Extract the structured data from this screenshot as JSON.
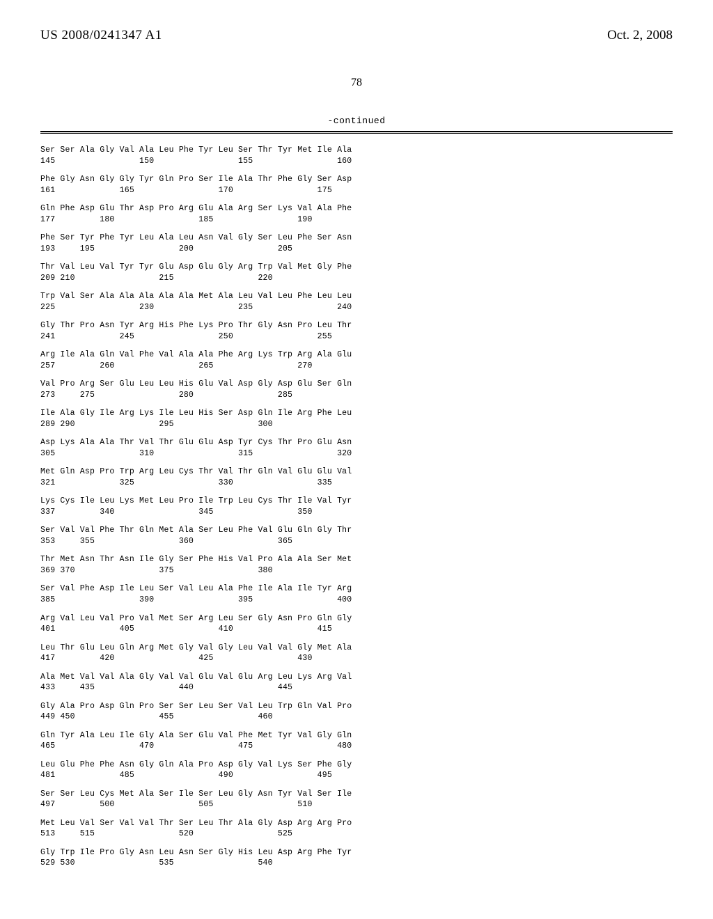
{
  "header": {
    "patent_number": "US 2008/0241347 A1",
    "patent_date": "Oct. 2, 2008"
  },
  "page_number": "78",
  "continued_label": "-continued",
  "sequence": {
    "start": 145,
    "end": 540,
    "line_length": 16,
    "position_markers_every": 5,
    "residues": [
      "Ser",
      "Ser",
      "Ala",
      "Gly",
      "Val",
      "Ala",
      "Leu",
      "Phe",
      "Tyr",
      "Leu",
      "Ser",
      "Thr",
      "Tyr",
      "Met",
      "Ile",
      "Ala",
      "Phe",
      "Gly",
      "Asn",
      "Gly",
      "Gly",
      "Tyr",
      "Gln",
      "Pro",
      "Ser",
      "Ile",
      "Ala",
      "Thr",
      "Phe",
      "Gly",
      "Ser",
      "Asp",
      "Gln",
      "Phe",
      "Asp",
      "Glu",
      "Thr",
      "Asp",
      "Pro",
      "Arg",
      "Glu",
      "Ala",
      "Arg",
      "Ser",
      "Lys",
      "Val",
      "Ala",
      "Phe",
      "Phe",
      "Ser",
      "Tyr",
      "Phe",
      "Tyr",
      "Leu",
      "Ala",
      "Leu",
      "Asn",
      "Val",
      "Gly",
      "Ser",
      "Leu",
      "Phe",
      "Ser",
      "Asn",
      "Thr",
      "Val",
      "Leu",
      "Val",
      "Tyr",
      "Tyr",
      "Glu",
      "Asp",
      "Glu",
      "Gly",
      "Arg",
      "Trp",
      "Val",
      "Met",
      "Gly",
      "Phe",
      "Trp",
      "Val",
      "Ser",
      "Ala",
      "Ala",
      "Ala",
      "Ala",
      "Ala",
      "Met",
      "Ala",
      "Leu",
      "Val",
      "Leu",
      "Phe",
      "Leu",
      "Leu",
      "Gly",
      "Thr",
      "Pro",
      "Asn",
      "Tyr",
      "Arg",
      "His",
      "Phe",
      "Lys",
      "Pro",
      "Thr",
      "Gly",
      "Asn",
      "Pro",
      "Leu",
      "Thr",
      "Arg",
      "Ile",
      "Ala",
      "Gln",
      "Val",
      "Phe",
      "Val",
      "Ala",
      "Ala",
      "Phe",
      "Arg",
      "Lys",
      "Trp",
      "Arg",
      "Ala",
      "Glu",
      "Val",
      "Pro",
      "Arg",
      "Ser",
      "Glu",
      "Leu",
      "Leu",
      "His",
      "Glu",
      "Val",
      "Asp",
      "Gly",
      "Asp",
      "Glu",
      "Ser",
      "Gln",
      "Ile",
      "Ala",
      "Gly",
      "Ile",
      "Arg",
      "Lys",
      "Ile",
      "Leu",
      "His",
      "Ser",
      "Asp",
      "Gln",
      "Ile",
      "Arg",
      "Phe",
      "Leu",
      "Asp",
      "Lys",
      "Ala",
      "Ala",
      "Thr",
      "Val",
      "Thr",
      "Glu",
      "Glu",
      "Asp",
      "Tyr",
      "Cys",
      "Thr",
      "Pro",
      "Glu",
      "Asn",
      "Met",
      "Gln",
      "Asp",
      "Pro",
      "Trp",
      "Arg",
      "Leu",
      "Cys",
      "Thr",
      "Val",
      "Thr",
      "Gln",
      "Val",
      "Glu",
      "Glu",
      "Val",
      "Lys",
      "Cys",
      "Ile",
      "Leu",
      "Lys",
      "Met",
      "Leu",
      "Pro",
      "Ile",
      "Trp",
      "Leu",
      "Cys",
      "Thr",
      "Ile",
      "Val",
      "Tyr",
      "Ser",
      "Val",
      "Val",
      "Phe",
      "Thr",
      "Gln",
      "Met",
      "Ala",
      "Ser",
      "Leu",
      "Phe",
      "Val",
      "Glu",
      "Gln",
      "Gly",
      "Thr",
      "Thr",
      "Met",
      "Asn",
      "Thr",
      "Asn",
      "Ile",
      "Gly",
      "Ser",
      "Phe",
      "His",
      "Val",
      "Pro",
      "Ala",
      "Ala",
      "Ser",
      "Met",
      "Ser",
      "Val",
      "Phe",
      "Asp",
      "Ile",
      "Leu",
      "Ser",
      "Val",
      "Leu",
      "Ala",
      "Phe",
      "Ile",
      "Ala",
      "Ile",
      "Tyr",
      "Arg",
      "Arg",
      "Val",
      "Leu",
      "Val",
      "Pro",
      "Val",
      "Met",
      "Ser",
      "Arg",
      "Leu",
      "Ser",
      "Gly",
      "Asn",
      "Pro",
      "Gln",
      "Gly",
      "Leu",
      "Thr",
      "Glu",
      "Leu",
      "Gln",
      "Arg",
      "Met",
      "Gly",
      "Val",
      "Gly",
      "Leu",
      "Val",
      "Val",
      "Gly",
      "Met",
      "Ala",
      "Ala",
      "Met",
      "Val",
      "Val",
      "Ala",
      "Gly",
      "Val",
      "Val",
      "Glu",
      "Val",
      "Glu",
      "Arg",
      "Leu",
      "Lys",
      "Arg",
      "Val",
      "Gly",
      "Ala",
      "Pro",
      "Asp",
      "Gln",
      "Pro",
      "Ser",
      "Ser",
      "Leu",
      "Ser",
      "Val",
      "Leu",
      "Trp",
      "Gln",
      "Val",
      "Pro",
      "Gln",
      "Tyr",
      "Ala",
      "Leu",
      "Ile",
      "Gly",
      "Ala",
      "Ser",
      "Glu",
      "Val",
      "Phe",
      "Met",
      "Tyr",
      "Val",
      "Gly",
      "Gln",
      "Leu",
      "Glu",
      "Phe",
      "Phe",
      "Asn",
      "Gly",
      "Gln",
      "Ala",
      "Pro",
      "Asp",
      "Gly",
      "Val",
      "Lys",
      "Ser",
      "Phe",
      "Gly",
      "Ser",
      "Ser",
      "Leu",
      "Cys",
      "Met",
      "Ala",
      "Ser",
      "Ile",
      "Ser",
      "Leu",
      "Gly",
      "Asn",
      "Tyr",
      "Val",
      "Ser",
      "Ile",
      "Met",
      "Leu",
      "Val",
      "Ser",
      "Val",
      "Val",
      "Thr",
      "Ser",
      "Leu",
      "Thr",
      "Ala",
      "Gly",
      "Asp",
      "Arg",
      "Arg",
      "Pro",
      "Gly",
      "Trp",
      "Ile",
      "Pro",
      "Gly",
      "Asn",
      "Leu",
      "Asn",
      "Ser",
      "Gly",
      "His",
      "Leu",
      "Asp",
      "Arg",
      "Phe",
      "Tyr"
    ]
  }
}
